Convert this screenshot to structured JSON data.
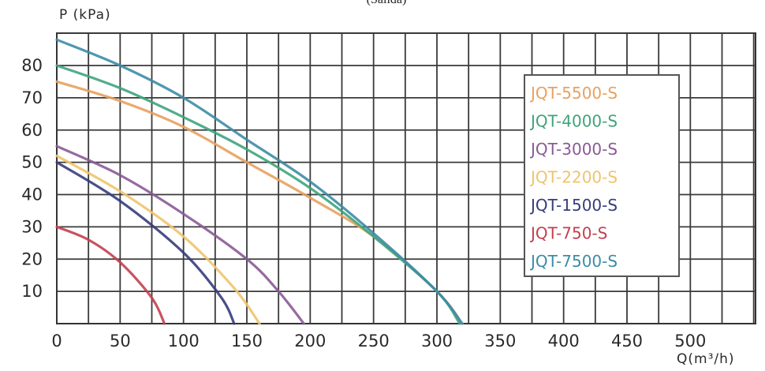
{
  "chart_data": {
    "type": "line",
    "title": "(Salida)",
    "xlabel": "Q(m³/h)",
    "ylabel": "P (kPa)",
    "xlim": [
      0,
      550
    ],
    "ylim": [
      0,
      90
    ],
    "x_ticks": [
      0,
      50,
      100,
      150,
      200,
      250,
      300,
      350,
      400,
      450,
      500
    ],
    "y_ticks": [
      10,
      20,
      30,
      40,
      50,
      60,
      70,
      80
    ],
    "grid": true,
    "legend_position": "right",
    "series": [
      {
        "name": "JQT-5500-S",
        "color": "#e8a15e",
        "x": [
          0,
          50,
          100,
          150,
          200,
          250,
          300,
          320
        ],
        "y": [
          75,
          69,
          61,
          50,
          39,
          27,
          10,
          0
        ]
      },
      {
        "name": "JQT-4000-S",
        "color": "#3fa47d",
        "x": [
          0,
          50,
          100,
          150,
          200,
          250,
          300,
          318
        ],
        "y": [
          80,
          73,
          64,
          54,
          42,
          27,
          10,
          0
        ]
      },
      {
        "name": "JQT-3000-S",
        "color": "#8a5a96",
        "x": [
          0,
          50,
          100,
          150,
          175,
          195
        ],
        "y": [
          55,
          46,
          34,
          20,
          10,
          0
        ]
      },
      {
        "name": "JQT-2200-S",
        "color": "#efc46c",
        "x": [
          0,
          50,
          100,
          140,
          160
        ],
        "y": [
          52,
          41,
          27,
          11,
          0
        ]
      },
      {
        "name": "JQT-1500-S",
        "color": "#373c7c",
        "x": [
          0,
          50,
          100,
          130,
          140
        ],
        "y": [
          50,
          38,
          22,
          8,
          0
        ]
      },
      {
        "name": "JQT-750-S",
        "color": "#c3404f",
        "x": [
          0,
          25,
          50,
          75,
          85
        ],
        "y": [
          30,
          26,
          19,
          8,
          0
        ]
      },
      {
        "name": "JQT-7500-S",
        "color": "#3d8ca6",
        "x": [
          0,
          50,
          100,
          150,
          200,
          250,
          300,
          320
        ],
        "y": [
          88,
          80,
          70,
          57,
          44,
          28,
          10,
          0
        ]
      }
    ]
  }
}
